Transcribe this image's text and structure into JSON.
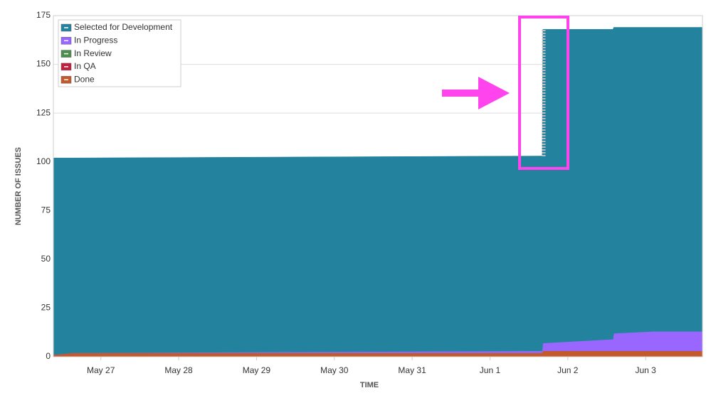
{
  "chart_data": {
    "type": "area",
    "stacked": true,
    "ylabel": "NUMBER OF ISSUES",
    "xlabel": "TIME",
    "x": [
      26.39,
      26.63,
      32.67,
      32.68,
      33.58,
      33.59,
      34.1,
      34.73
    ],
    "xlim": [
      26.39,
      34.73
    ],
    "xticks": [
      {
        "value": 27,
        "label": "May 27"
      },
      {
        "value": 28,
        "label": "May 28"
      },
      {
        "value": 29,
        "label": "May 29"
      },
      {
        "value": 30,
        "label": "May 30"
      },
      {
        "value": 31,
        "label": "May 31"
      },
      {
        "value": 32,
        "label": "Jun 1"
      },
      {
        "value": 33,
        "label": "Jun 2"
      },
      {
        "value": 34,
        "label": "Jun 3"
      }
    ],
    "ylim": [
      0,
      175
    ],
    "yticks": [
      0,
      25,
      50,
      75,
      100,
      125,
      150,
      175
    ],
    "grid": true,
    "legend": "upper-left",
    "series": [
      {
        "name": "Selected for Development",
        "color": "#23829e",
        "values": [
          101,
          100,
          100,
          161,
          159,
          157,
          156,
          156
        ]
      },
      {
        "name": "In Progress",
        "color": "#9966ff",
        "values": [
          0,
          0,
          1,
          4,
          6,
          9,
          10,
          10
        ]
      },
      {
        "name": "In Review",
        "color": "#4c8f4c",
        "values": [
          0,
          0,
          0,
          0,
          0,
          0,
          0,
          0
        ]
      },
      {
        "name": "In QA",
        "color": "#c0203e",
        "values": [
          0,
          0,
          0,
          0,
          0,
          0,
          0,
          0
        ]
      },
      {
        "name": "Done",
        "color": "#c4592b",
        "values": [
          1,
          2,
          2,
          3,
          3,
          3,
          3,
          3
        ]
      }
    ]
  }
}
